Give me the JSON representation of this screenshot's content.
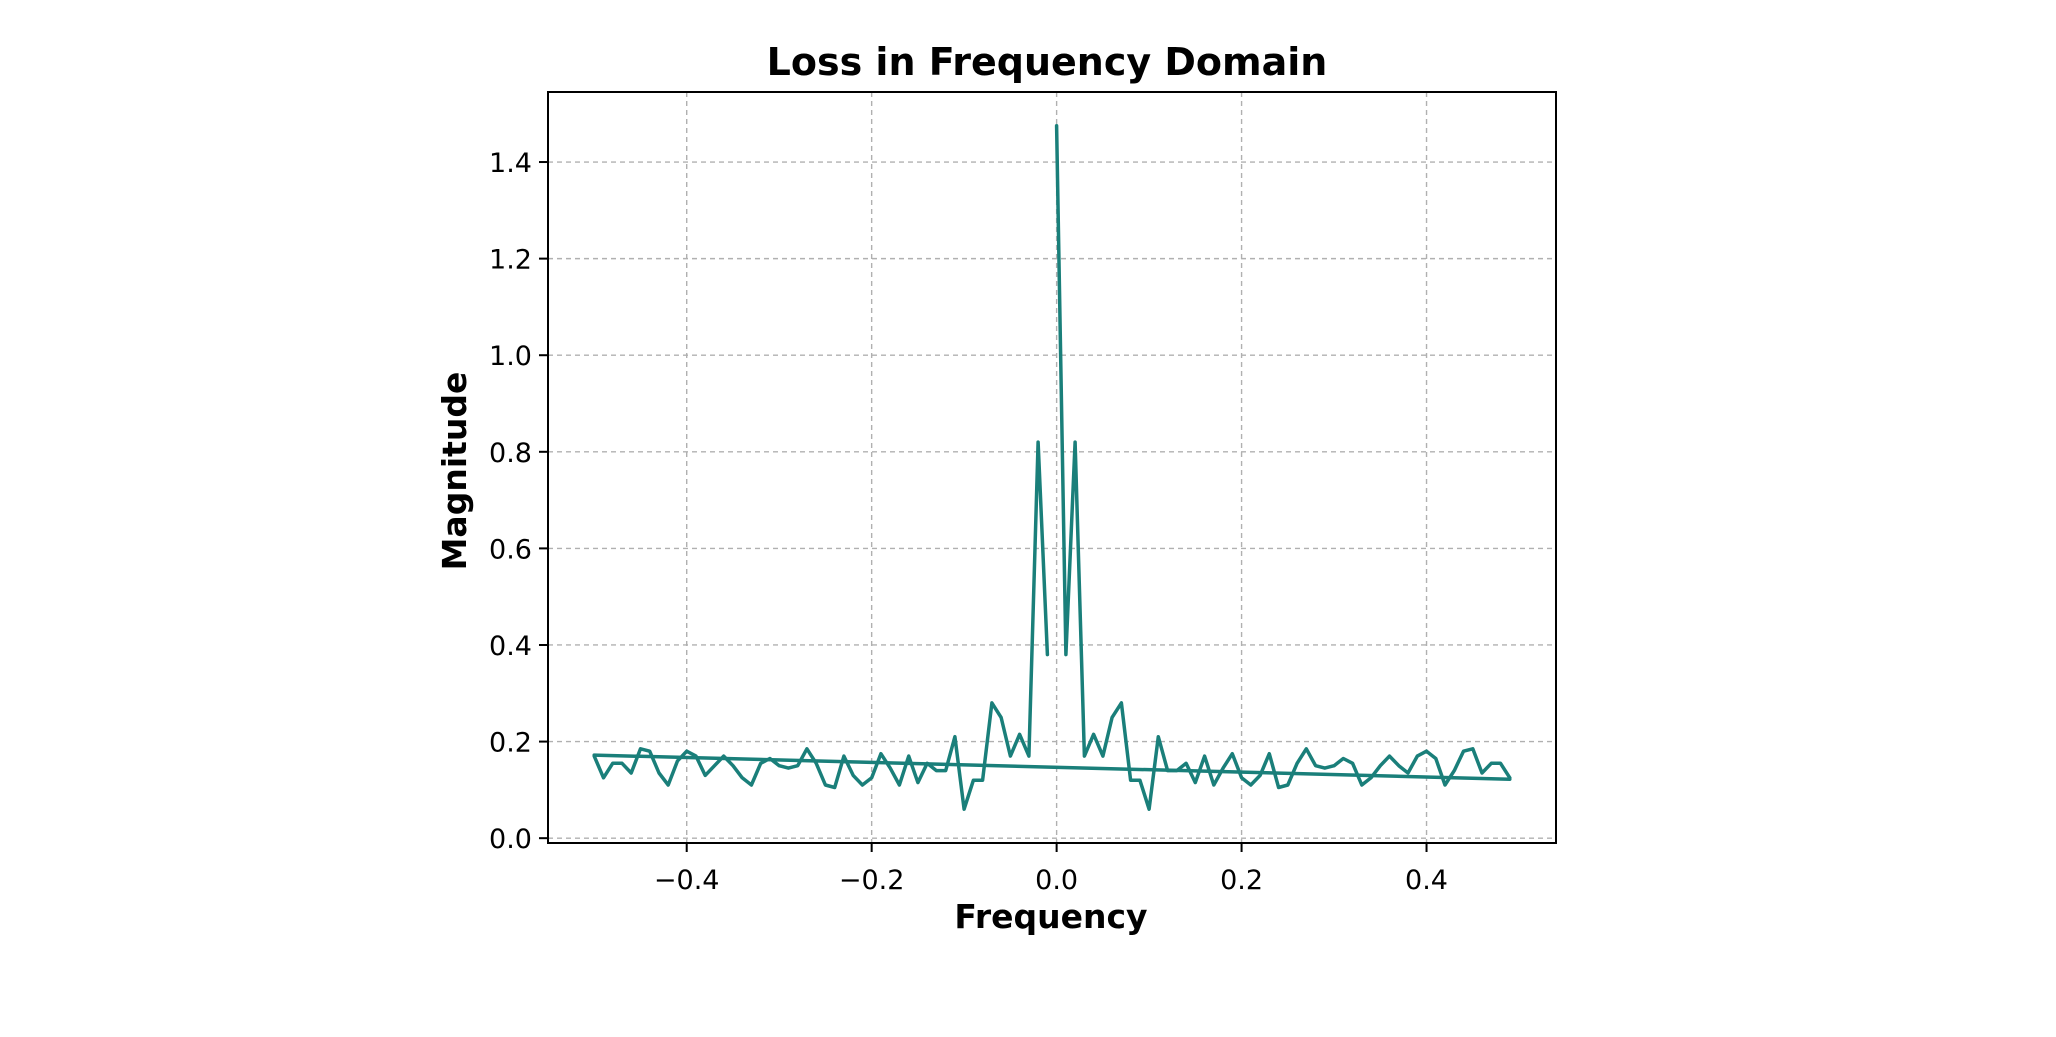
{
  "colors": {
    "series": "#1a7f7a"
  },
  "chart_data": {
    "type": "line",
    "title": "Loss in Frequency Domain",
    "xlabel": "Frequency",
    "ylabel": "Magnitude",
    "xlim": [
      -0.55,
      0.54
    ],
    "ylim": [
      -0.01,
      1.545
    ],
    "grid": true,
    "xticks": [
      -0.4,
      -0.2,
      0.0,
      0.2,
      0.4
    ],
    "xtick_labels": [
      "−0.4",
      "−0.2",
      "0.0",
      "0.2",
      "0.4"
    ],
    "yticks": [
      0.0,
      0.2,
      0.4,
      0.6,
      0.8,
      1.0,
      1.2,
      1.4
    ],
    "ytick_labels": [
      "0.0",
      "0.2",
      "0.4",
      "0.6",
      "0.8",
      "1.0",
      "1.2",
      "1.4"
    ],
    "series": [
      {
        "x": [
          -0.5,
          -0.49,
          -0.48,
          -0.47,
          -0.46,
          -0.45,
          -0.44,
          -0.43,
          -0.42,
          -0.41,
          -0.4,
          -0.39,
          -0.38,
          -0.37,
          -0.36,
          -0.35,
          -0.34,
          -0.33,
          -0.32,
          -0.31,
          -0.3,
          -0.29,
          -0.28,
          -0.27,
          -0.26,
          -0.25,
          -0.24,
          -0.23,
          -0.22,
          -0.21,
          -0.2,
          -0.19,
          -0.18,
          -0.17,
          -0.16,
          -0.15,
          -0.14,
          -0.13,
          -0.12,
          -0.11,
          -0.1,
          -0.09,
          -0.08,
          -0.07,
          -0.06,
          -0.05,
          -0.04,
          -0.03,
          -0.02,
          -0.01
        ],
        "y": [
          0.17,
          0.125,
          0.155,
          0.155,
          0.135,
          0.185,
          0.18,
          0.135,
          0.11,
          0.16,
          0.18,
          0.17,
          0.13,
          0.15,
          0.17,
          0.15,
          0.125,
          0.11,
          0.155,
          0.165,
          0.15,
          0.145,
          0.15,
          0.185,
          0.155,
          0.11,
          0.105,
          0.17,
          0.13,
          0.11,
          0.125,
          0.175,
          0.145,
          0.11,
          0.17,
          0.115,
          0.155,
          0.14,
          0.14,
          0.21,
          0.06,
          0.12,
          0.12,
          0.28,
          0.25,
          0.17,
          0.215,
          0.17,
          0.82,
          0.38
        ]
      },
      {
        "x": [
          0.0,
          0.01,
          0.02,
          0.03,
          0.04,
          0.05,
          0.06,
          0.07,
          0.08,
          0.09,
          0.1,
          0.11,
          0.12,
          0.13,
          0.14,
          0.15,
          0.16,
          0.17,
          0.18,
          0.19,
          0.2,
          0.21,
          0.22,
          0.23,
          0.24,
          0.25,
          0.26,
          0.27,
          0.28,
          0.29,
          0.3,
          0.31,
          0.32,
          0.33,
          0.34,
          0.35,
          0.36,
          0.37,
          0.38,
          0.39,
          0.4,
          0.41,
          0.42,
          0.43,
          0.44,
          0.45,
          0.46,
          0.47,
          0.48,
          0.49
        ],
        "y": [
          1.475,
          0.38,
          0.82,
          0.17,
          0.215,
          0.17,
          0.25,
          0.28,
          0.12,
          0.12,
          0.06,
          0.21,
          0.14,
          0.14,
          0.155,
          0.115,
          0.17,
          0.11,
          0.145,
          0.175,
          0.125,
          0.11,
          0.13,
          0.175,
          0.105,
          0.11,
          0.155,
          0.185,
          0.15,
          0.145,
          0.15,
          0.165,
          0.155,
          0.11,
          0.125,
          0.15,
          0.17,
          0.15,
          0.135,
          0.17,
          0.18,
          0.165,
          0.11,
          0.14,
          0.18,
          0.185,
          0.135,
          0.155,
          0.155,
          0.125
        ]
      },
      {
        "x": [
          -0.5,
          0.49
        ],
        "y": [
          0.172,
          0.122
        ]
      }
    ]
  }
}
